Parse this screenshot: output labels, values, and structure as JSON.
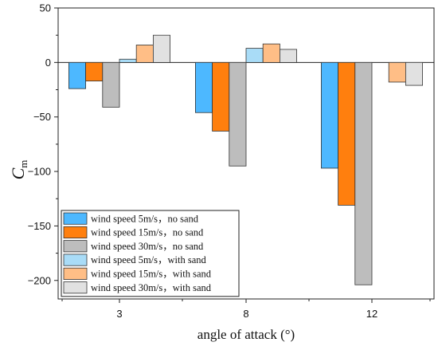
{
  "chart_data": {
    "type": "bar",
    "xlabel": "angle of attack (°)",
    "ylabel": "C",
    "ylabel_sub": "m",
    "categories": [
      "3",
      "8",
      "12"
    ],
    "ylim": [
      -217,
      50
    ],
    "yticks": [
      50,
      0,
      -50,
      -100,
      -150,
      -200
    ],
    "ytick_labels": [
      "50",
      "0",
      "−50",
      "−100",
      "−150",
      "−200"
    ],
    "grid": false,
    "legend_position": "lower-left",
    "series": [
      {
        "name": "wind speed 5m/s，no sand",
        "color": "#4db8ff",
        "values": [
          -24,
          -46,
          -97
        ]
      },
      {
        "name": "wind speed 15m/s，no sand",
        "color": "#ff7f0e",
        "values": [
          -17,
          -63,
          -131
        ]
      },
      {
        "name": "wind speed 30m/s，no sand",
        "color": "#bdbdbd",
        "values": [
          -41,
          -95,
          -204
        ]
      },
      {
        "name": "wind speed 5m/s，with sand",
        "color": "#a9dcf7",
        "values": [
          3,
          13,
          0
        ]
      },
      {
        "name": "wind speed 15m/s，with sand",
        "color": "#ffbe86",
        "values": [
          16,
          17,
          -18
        ]
      },
      {
        "name": "wind speed 30m/s，with sand",
        "color": "#e1e1e1",
        "values": [
          25,
          12,
          -21
        ]
      }
    ]
  }
}
